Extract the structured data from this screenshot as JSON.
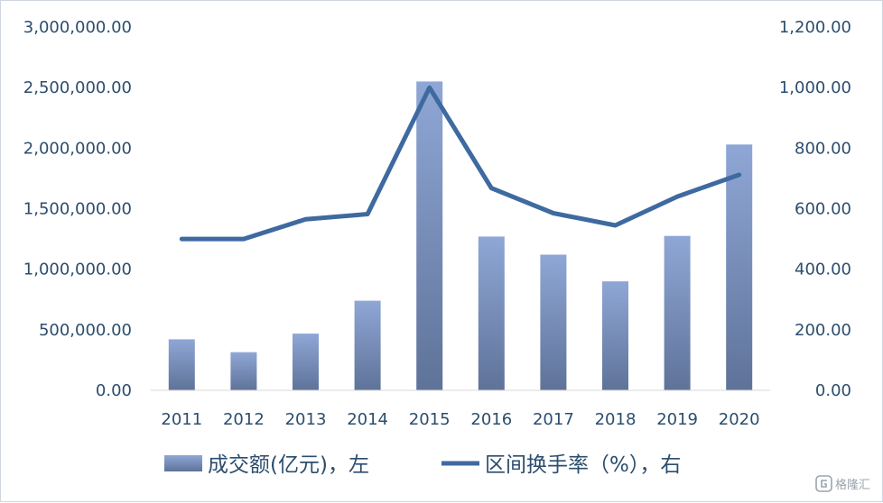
{
  "chart_data": {
    "type": "bar",
    "categories": [
      "2011",
      "2012",
      "2013",
      "2014",
      "2015",
      "2016",
      "2017",
      "2018",
      "2019",
      "2020"
    ],
    "series": [
      {
        "name": "成交额(亿元)，左",
        "type": "bar",
        "axis": "left",
        "color": "#7b93c4",
        "values": [
          421000,
          315000,
          468000,
          740000,
          2550000,
          1270000,
          1120000,
          900000,
          1275000,
          2030000
        ]
      },
      {
        "name": "区间换手率（%），右",
        "type": "line",
        "axis": "right",
        "color": "#3e6aa0",
        "values": [
          500,
          500,
          565,
          582,
          1000,
          668,
          585,
          545,
          640,
          712
        ]
      }
    ],
    "y_left": {
      "min": 0,
      "max": 3000000,
      "ticks": [
        "0.00",
        "500,000.00",
        "1,000,000.00",
        "1,500,000.00",
        "2,000,000.00",
        "2,500,000.00",
        "3,000,000.00"
      ]
    },
    "y_right": {
      "min": 0,
      "max": 1200,
      "ticks": [
        "0.00",
        "200.00",
        "400.00",
        "600.00",
        "800.00",
        "1,000.00",
        "1,200.00"
      ]
    },
    "grid": false,
    "legend_position": "bottom"
  },
  "watermark": {
    "icon": "gelonghui-logo-icon",
    "text": "格隆汇"
  }
}
